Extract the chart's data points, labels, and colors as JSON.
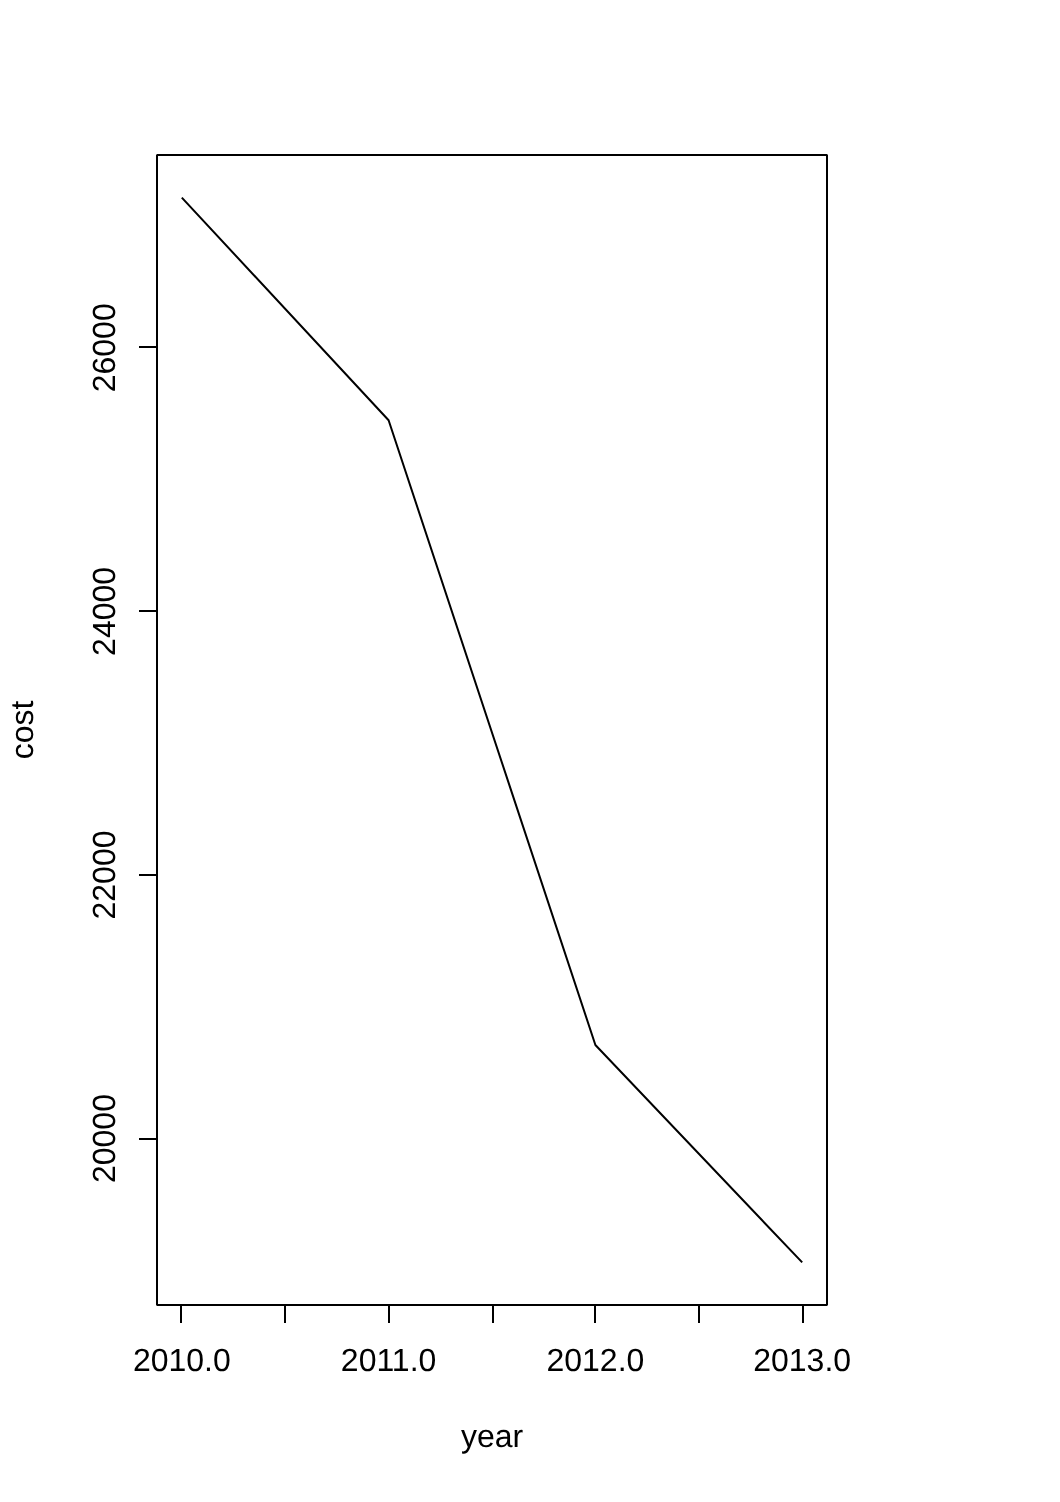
{
  "chart_data": {
    "type": "line",
    "xlabel": "year",
    "ylabel": "cost",
    "x": [
      2010,
      2011,
      2012,
      2013
    ],
    "series": [
      {
        "color": "#000000",
        "values": [
          27140,
          25450,
          20710,
          19060
        ]
      }
    ],
    "xlim": [
      2009.88,
      2013.12
    ],
    "ylim": [
      18737,
      27463
    ],
    "xticks": [
      {
        "value": 2010,
        "label": "2010.0"
      },
      {
        "value": 2010.5,
        "label": null
      },
      {
        "value": 2011,
        "label": "2011.0"
      },
      {
        "value": 2011.5,
        "label": null
      },
      {
        "value": 2012,
        "label": "2012.0"
      },
      {
        "value": 2012.5,
        "label": null
      },
      {
        "value": 2013,
        "label": "2013.0"
      }
    ],
    "yticks": [
      20000,
      22000,
      24000,
      26000
    ],
    "line_style": "solid"
  }
}
